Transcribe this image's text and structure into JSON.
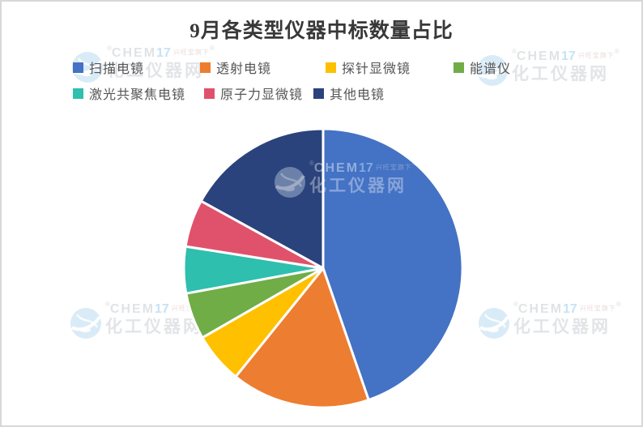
{
  "chart_data": {
    "type": "pie",
    "title": "9月各类型仪器中标数量占比",
    "legend_position": "top",
    "start_angle_deg_from_top_clockwise": 0,
    "units": "percent",
    "series": [
      {
        "name": "扫描电镜",
        "value_pct": 44.7,
        "color": "#4472C4"
      },
      {
        "name": "透射电镜",
        "value_pct": 16.1,
        "color": "#ED7D31"
      },
      {
        "name": "探针显微镜",
        "value_pct": 5.9,
        "color": "#FFC000"
      },
      {
        "name": "能谱仪",
        "value_pct": 5.4,
        "color": "#70AD47"
      },
      {
        "name": "激光共聚焦电镜",
        "value_pct": 5.4,
        "color": "#2EBFAE"
      },
      {
        "name": "原子力显微镜",
        "value_pct": 5.5,
        "color": "#E0526B"
      },
      {
        "name": "其他电镜",
        "value_pct": 17.0,
        "color": "#2A437C"
      }
    ]
  },
  "watermark": {
    "brand_gray": "CHEM",
    "brand_blue": "17",
    "tagline": "兴旺宝旗下",
    "site": "化工仪器网",
    "reg": "®"
  }
}
